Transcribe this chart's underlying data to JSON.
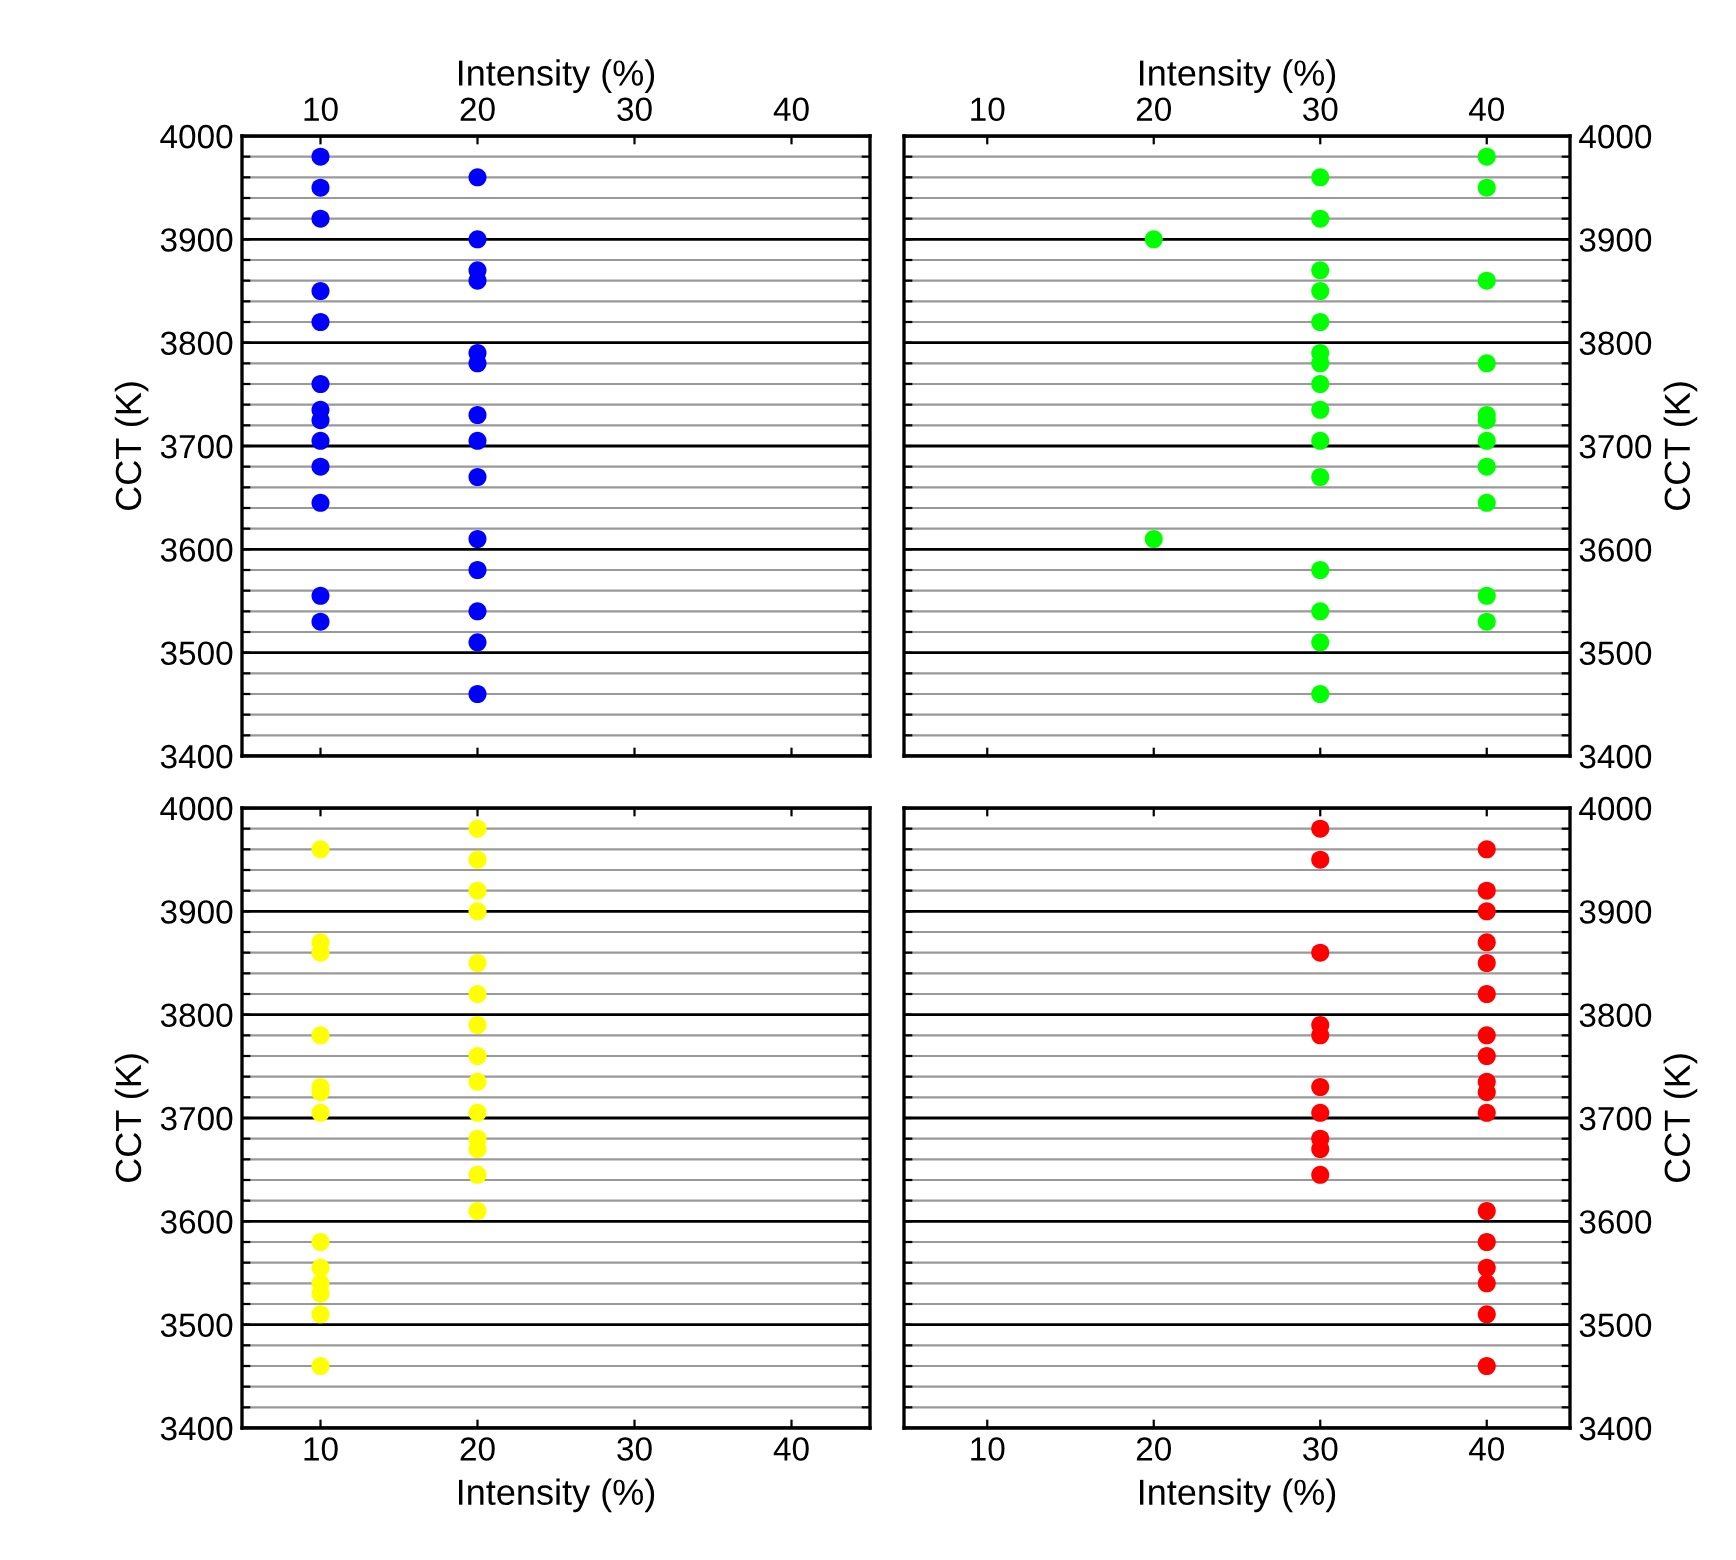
{
  "chart_data": [
    {
      "type": "scatter",
      "xlabel": "Intensity (%)",
      "ylabel": "CCT (K)",
      "xlim": [
        5,
        45
      ],
      "xticks": [
        10,
        20,
        30,
        40
      ],
      "ylim": [
        3400,
        4000
      ],
      "yticks": [
        3400,
        {
          "value": 3420,
          "label": null
        },
        {
          "value": 3440,
          "label": null
        },
        {
          "value": 3460,
          "label": null
        },
        {
          "value": 3480,
          "label": null
        },
        3500,
        {
          "value": 3520,
          "label": null
        },
        {
          "value": 3540,
          "label": null
        },
        {
          "value": 3560,
          "label": null
        },
        {
          "value": 3580,
          "label": null
        },
        3600,
        {
          "value": 3620,
          "label": null
        },
        {
          "value": 3640,
          "label": null
        },
        {
          "value": 3660,
          "label": null
        },
        {
          "value": 3680,
          "label": null
        },
        3700,
        {
          "value": 3720,
          "label": null
        },
        {
          "value": 3740,
          "label": null
        },
        {
          "value": 3760,
          "label": null
        },
        {
          "value": 3780,
          "label": null
        },
        3800,
        {
          "value": 3820,
          "label": null
        },
        {
          "value": 3840,
          "label": null
        },
        {
          "value": 3860,
          "label": null
        },
        {
          "value": 3880,
          "label": null
        },
        3900,
        {
          "value": 3920,
          "label": null
        },
        {
          "value": 3940,
          "label": null
        },
        {
          "value": 3960,
          "label": null
        },
        {
          "value": 3980,
          "label": null
        },
        4000
      ],
      "grid": true,
      "marker": "circle",
      "series": [
        {
          "color": "#0000ff",
          "x": [
            10,
            10,
            10,
            10,
            10,
            10,
            10,
            10,
            10,
            10,
            10,
            10,
            10,
            20,
            20,
            20,
            20,
            20,
            20,
            20,
            20,
            20,
            20,
            20,
            20,
            20,
            20
          ],
          "values": [
            3980,
            3950,
            3920,
            3850,
            3820,
            3760,
            3735,
            3725,
            3705,
            3680,
            3645,
            3555,
            3530,
            3960,
            3900,
            3870,
            3860,
            3790,
            3780,
            3730,
            3705,
            3670,
            3610,
            3580,
            3540,
            3510,
            3460
          ]
        }
      ]
    },
    {
      "type": "scatter",
      "xlabel": "Intensity (%)",
      "ylabel": "CCT (K)",
      "xlim": [
        5,
        45
      ],
      "xticks": [
        10,
        20,
        30,
        40
      ],
      "ylim": [
        3400,
        4000
      ],
      "yticks": [
        3400,
        {
          "value": 3420,
          "label": null
        },
        {
          "value": 3440,
          "label": null
        },
        {
          "value": 3460,
          "label": null
        },
        {
          "value": 3480,
          "label": null
        },
        3500,
        {
          "value": 3520,
          "label": null
        },
        {
          "value": 3540,
          "label": null
        },
        {
          "value": 3560,
          "label": null
        },
        {
          "value": 3580,
          "label": null
        },
        3600,
        {
          "value": 3620,
          "label": null
        },
        {
          "value": 3640,
          "label": null
        },
        {
          "value": 3660,
          "label": null
        },
        {
          "value": 3680,
          "label": null
        },
        3700,
        {
          "value": 3720,
          "label": null
        },
        {
          "value": 3740,
          "label": null
        },
        {
          "value": 3760,
          "label": null
        },
        {
          "value": 3780,
          "label": null
        },
        3800,
        {
          "value": 3820,
          "label": null
        },
        {
          "value": 3840,
          "label": null
        },
        {
          "value": 3860,
          "label": null
        },
        {
          "value": 3880,
          "label": null
        },
        3900,
        {
          "value": 3920,
          "label": null
        },
        {
          "value": 3940,
          "label": null
        },
        {
          "value": 3960,
          "label": null
        },
        {
          "value": 3980,
          "label": null
        },
        4000
      ],
      "grid": true,
      "marker": "circle",
      "series": [
        {
          "color": "#00ff00",
          "x": [
            20,
            20,
            30,
            30,
            30,
            30,
            30,
            30,
            30,
            30,
            30,
            30,
            30,
            30,
            30,
            30,
            30,
            40,
            40,
            40,
            40,
            40,
            40,
            40,
            40,
            40,
            40,
            40
          ],
          "values": [
            3900,
            3610,
            3960,
            3920,
            3870,
            3850,
            3820,
            3790,
            3780,
            3760,
            3735,
            3705,
            3670,
            3580,
            3540,
            3510,
            3460,
            3980,
            3950,
            3860,
            3780,
            3730,
            3725,
            3705,
            3680,
            3645,
            3555,
            3530
          ]
        }
      ]
    },
    {
      "type": "scatter",
      "xlabel": "Intensity (%)",
      "ylabel": "CCT (K)",
      "xlim": [
        5,
        45
      ],
      "xticks": [
        10,
        20,
        30,
        40
      ],
      "ylim": [
        3400,
        4000
      ],
      "yticks": [
        3400,
        {
          "value": 3420,
          "label": null
        },
        {
          "value": 3440,
          "label": null
        },
        {
          "value": 3460,
          "label": null
        },
        {
          "value": 3480,
          "label": null
        },
        3500,
        {
          "value": 3520,
          "label": null
        },
        {
          "value": 3540,
          "label": null
        },
        {
          "value": 3560,
          "label": null
        },
        {
          "value": 3580,
          "label": null
        },
        3600,
        {
          "value": 3620,
          "label": null
        },
        {
          "value": 3640,
          "label": null
        },
        {
          "value": 3660,
          "label": null
        },
        {
          "value": 3680,
          "label": null
        },
        3700,
        {
          "value": 3720,
          "label": null
        },
        {
          "value": 3740,
          "label": null
        },
        {
          "value": 3760,
          "label": null
        },
        {
          "value": 3780,
          "label": null
        },
        3800,
        {
          "value": 3820,
          "label": null
        },
        {
          "value": 3840,
          "label": null
        },
        {
          "value": 3860,
          "label": null
        },
        {
          "value": 3880,
          "label": null
        },
        3900,
        {
          "value": 3920,
          "label": null
        },
        {
          "value": 3940,
          "label": null
        },
        {
          "value": 3960,
          "label": null
        },
        {
          "value": 3980,
          "label": null
        },
        4000
      ],
      "grid": true,
      "marker": "circle",
      "series": [
        {
          "color": "#ffff00",
          "x": [
            10,
            10,
            10,
            10,
            10,
            10,
            10,
            10,
            10,
            10,
            10,
            10,
            10,
            20,
            20,
            20,
            20,
            20,
            20,
            20,
            20,
            20,
            20,
            20,
            20,
            20,
            20
          ],
          "values": [
            3960,
            3870,
            3860,
            3780,
            3730,
            3725,
            3705,
            3580,
            3555,
            3540,
            3530,
            3510,
            3460,
            3980,
            3950,
            3920,
            3900,
            3850,
            3820,
            3790,
            3760,
            3735,
            3705,
            3680,
            3670,
            3645,
            3610
          ]
        }
      ]
    },
    {
      "type": "scatter",
      "xlabel": "Intensity (%)",
      "ylabel": "CCT (K)",
      "xlim": [
        5,
        45
      ],
      "xticks": [
        10,
        20,
        30,
        40
      ],
      "ylim": [
        3400,
        4000
      ],
      "yticks": [
        3400,
        {
          "value": 3420,
          "label": null
        },
        {
          "value": 3440,
          "label": null
        },
        {
          "value": 3460,
          "label": null
        },
        {
          "value": 3480,
          "label": null
        },
        3500,
        {
          "value": 3520,
          "label": null
        },
        {
          "value": 3540,
          "label": null
        },
        {
          "value": 3560,
          "label": null
        },
        {
          "value": 3580,
          "label": null
        },
        3600,
        {
          "value": 3620,
          "label": null
        },
        {
          "value": 3640,
          "label": null
        },
        {
          "value": 3660,
          "label": null
        },
        {
          "value": 3680,
          "label": null
        },
        3700,
        {
          "value": 3720,
          "label": null
        },
        {
          "value": 3740,
          "label": null
        },
        {
          "value": 3760,
          "label": null
        },
        {
          "value": 3780,
          "label": null
        },
        3800,
        {
          "value": 3820,
          "label": null
        },
        {
          "value": 3840,
          "label": null
        },
        {
          "value": 3860,
          "label": null
        },
        {
          "value": 3880,
          "label": null
        },
        3900,
        {
          "value": 3920,
          "label": null
        },
        {
          "value": 3940,
          "label": null
        },
        {
          "value": 3960,
          "label": null
        },
        {
          "value": 3980,
          "label": null
        },
        4000
      ],
      "grid": true,
      "marker": "circle",
      "series": [
        {
          "color": "#ff0000",
          "x": [
            30,
            30,
            30,
            30,
            30,
            30,
            30,
            30,
            30,
            30,
            40,
            40,
            40,
            40,
            40,
            40,
            40,
            40,
            40,
            40,
            40,
            40,
            40,
            40,
            40,
            40,
            40
          ],
          "values": [
            3980,
            3950,
            3860,
            3790,
            3780,
            3730,
            3705,
            3680,
            3670,
            3645,
            3960,
            3920,
            3900,
            3870,
            3850,
            3820,
            3780,
            3760,
            3735,
            3725,
            3705,
            3610,
            3580,
            3555,
            3540,
            3510,
            3460
          ]
        }
      ]
    }
  ]
}
